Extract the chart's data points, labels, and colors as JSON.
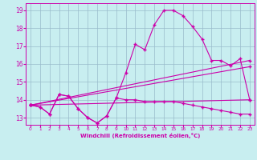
{
  "xlabel": "Windchill (Refroidissement éolien,°C)",
  "bg_color": "#c8eef0",
  "line_color": "#cc00aa",
  "grid_color": "#99bbcc",
  "xlim": [
    -0.5,
    23.5
  ],
  "ylim": [
    12.6,
    19.4
  ],
  "yticks": [
    13,
    14,
    15,
    16,
    17,
    18,
    19
  ],
  "xticks": [
    0,
    1,
    2,
    3,
    4,
    5,
    6,
    7,
    8,
    9,
    10,
    11,
    12,
    13,
    14,
    15,
    16,
    17,
    18,
    19,
    20,
    21,
    22,
    23
  ],
  "series_main_x": [
    0,
    1,
    2,
    3,
    4,
    5,
    6,
    7,
    8,
    9,
    10,
    11,
    12,
    13,
    14,
    15,
    16,
    17,
    18,
    19,
    20,
    21,
    22,
    23
  ],
  "series_main_y": [
    13.7,
    13.6,
    13.2,
    14.3,
    14.2,
    13.5,
    13.0,
    12.7,
    13.1,
    14.1,
    15.5,
    17.1,
    16.8,
    18.2,
    19.0,
    19.0,
    18.7,
    18.1,
    17.4,
    16.2,
    16.2,
    15.9,
    16.3,
    14.0
  ],
  "series_flat_x": [
    0,
    1,
    2,
    3,
    4,
    5,
    6,
    7,
    8,
    9,
    10,
    11,
    12,
    13,
    14,
    15,
    16,
    17,
    18,
    19,
    20,
    21,
    22,
    23
  ],
  "series_flat_y": [
    13.7,
    13.6,
    13.2,
    14.3,
    14.2,
    13.5,
    13.0,
    12.7,
    13.1,
    14.1,
    14.0,
    14.0,
    13.9,
    13.9,
    13.9,
    13.9,
    13.8,
    13.7,
    13.6,
    13.5,
    13.4,
    13.3,
    13.2,
    13.2
  ],
  "series_line1_x": [
    0,
    23
  ],
  "series_line1_y": [
    13.7,
    16.2
  ],
  "series_line2_x": [
    0,
    23
  ],
  "series_line2_y": [
    13.7,
    15.85
  ],
  "series_line3_x": [
    0,
    23
  ],
  "series_line3_y": [
    13.7,
    14.0
  ]
}
